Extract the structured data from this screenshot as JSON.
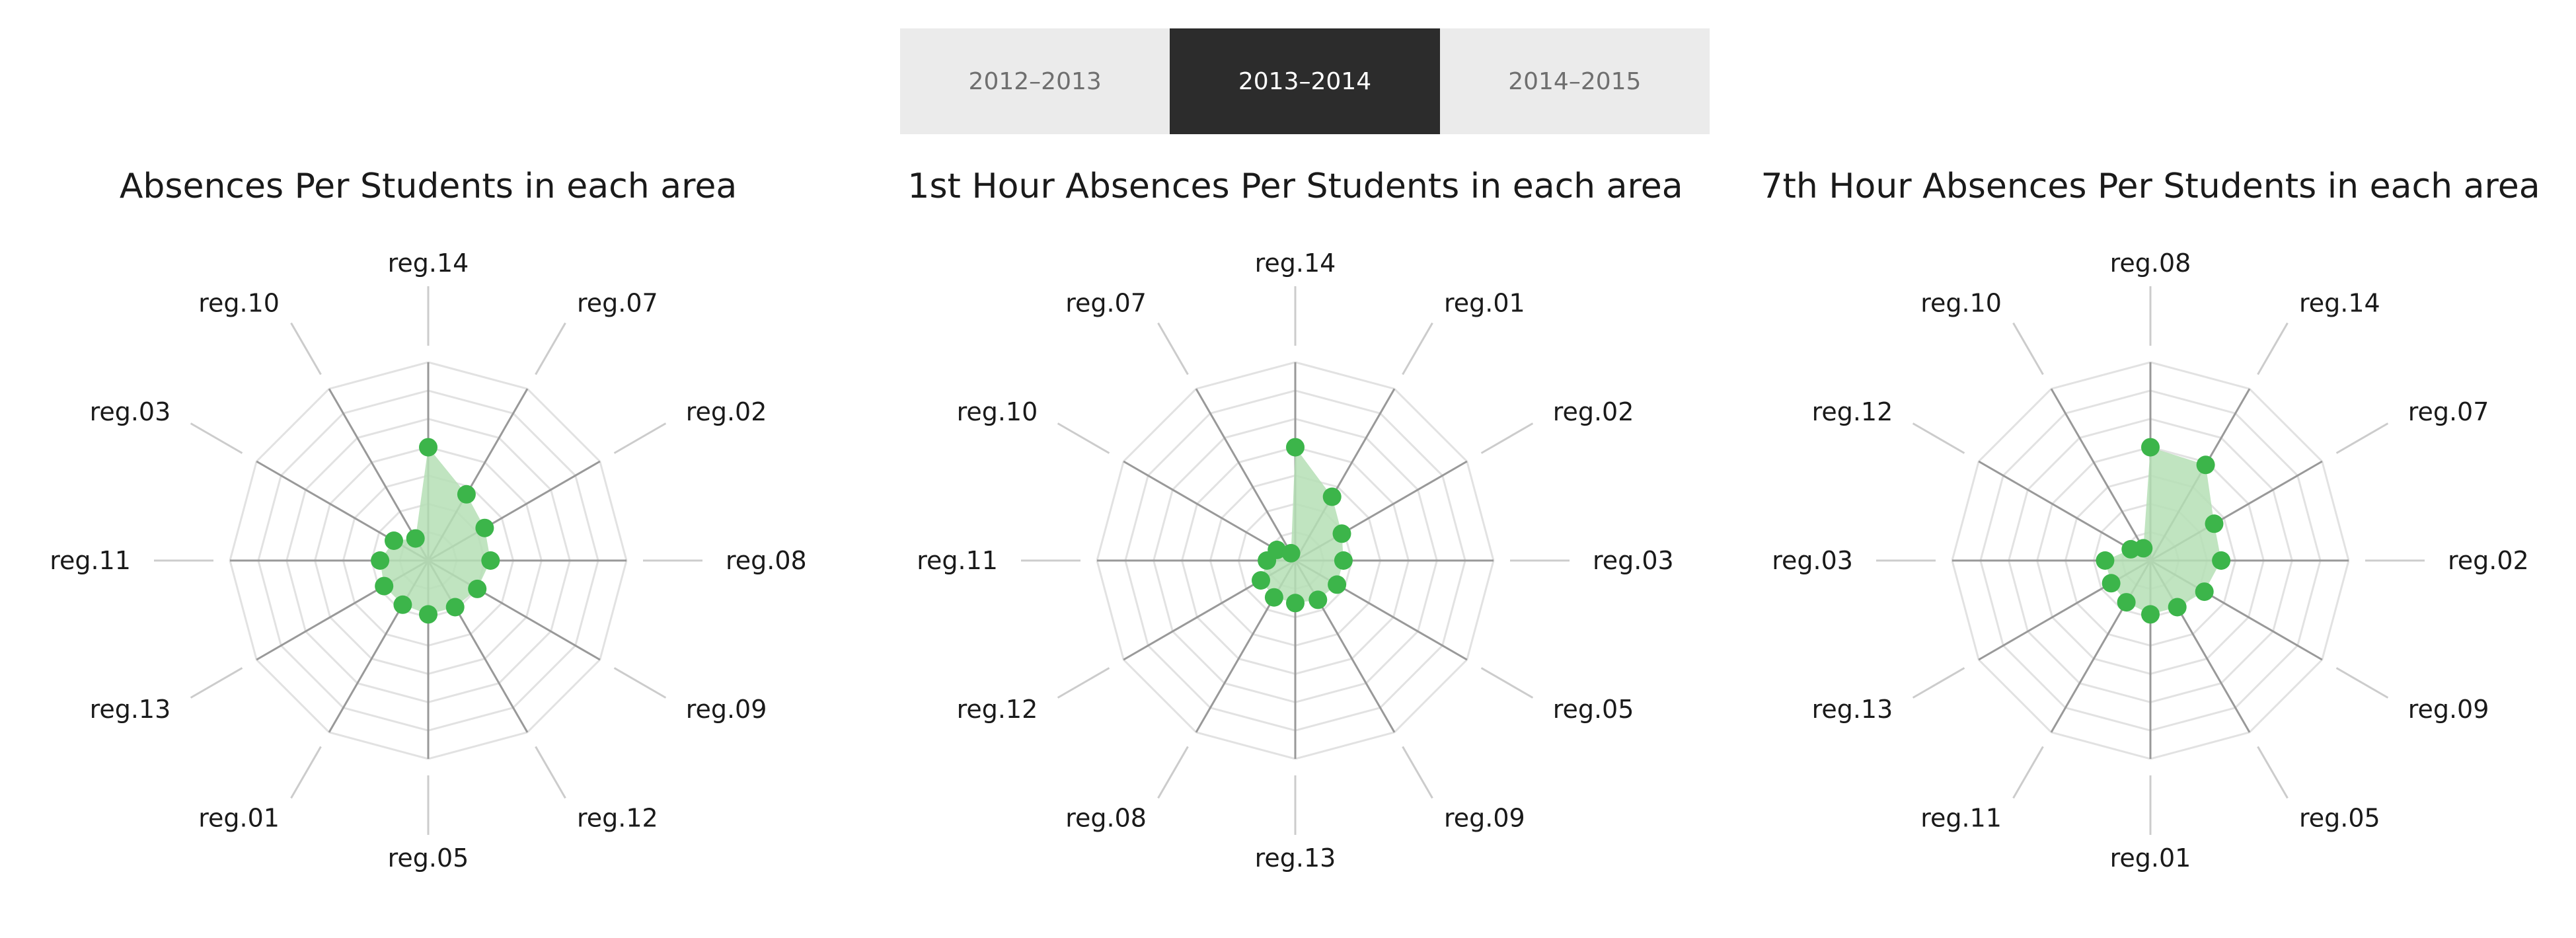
{
  "tabs": [
    {
      "label": "2012–2013",
      "active": false
    },
    {
      "label": "2013–2014",
      "active": true
    },
    {
      "label": "2014–2015",
      "active": false
    }
  ],
  "colors": {
    "fill": "#b5dfb5",
    "marker": "#3cb54a",
    "spoke": "#999999",
    "grid": "#e2e2e2",
    "leader": "#cccccc",
    "tab_active_bg": "#2c2c2c",
    "tab_bg": "#ebebeb"
  },
  "chart_data": [
    {
      "type": "radar",
      "title": "Absences Per Students in each area",
      "categories": [
        "reg.14",
        "reg.07",
        "reg.02",
        "reg.08",
        "reg.09",
        "reg.12",
        "reg.05",
        "reg.01",
        "reg.13",
        "reg.11",
        "reg.03",
        "reg.10"
      ],
      "values": [
        4.0,
        2.7,
        2.3,
        2.2,
        2.0,
        1.9,
        1.9,
        1.8,
        1.8,
        1.7,
        1.4,
        0.9
      ],
      "rmax": 7,
      "grid_levels": 7
    },
    {
      "type": "radar",
      "title": "1st Hour Absences Per Students in each area",
      "categories": [
        "reg.14",
        "reg.01",
        "reg.02",
        "reg.03",
        "reg.05",
        "reg.09",
        "reg.13",
        "reg.08",
        "reg.12",
        "reg.11",
        "reg.10",
        "reg.07"
      ],
      "values": [
        4.0,
        2.6,
        1.9,
        1.7,
        1.7,
        1.6,
        1.5,
        1.5,
        1.4,
        1.0,
        0.75,
        0.3
      ],
      "rmax": 7,
      "grid_levels": 7
    },
    {
      "type": "radar",
      "title": "7th Hour Absences Per Students in each area",
      "categories": [
        "reg.08",
        "reg.14",
        "reg.07",
        "reg.02",
        "reg.09",
        "reg.05",
        "reg.01",
        "reg.11",
        "reg.13",
        "reg.03",
        "reg.12",
        "reg.10"
      ],
      "values": [
        4.0,
        3.9,
        2.6,
        2.5,
        2.2,
        1.9,
        1.9,
        1.7,
        1.6,
        1.6,
        0.8,
        0.5
      ],
      "rmax": 7,
      "grid_levels": 7
    }
  ]
}
